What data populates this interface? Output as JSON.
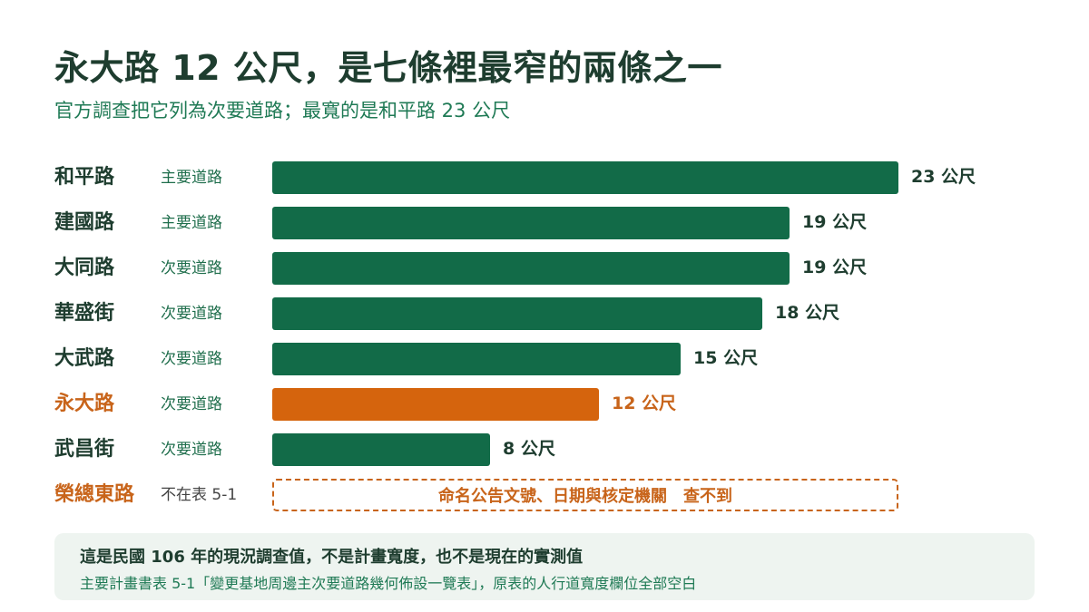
{
  "header": {
    "title": "永大路 12 公尺，是七條裡最窄的兩條之一",
    "subtitle": "官方調查把它列為次要道路；最寬的是和平路 23 公尺"
  },
  "colors": {
    "bar": "#126b48",
    "highlight": "#d5640d",
    "text_dark": "#1e3d2f",
    "text_green": "#1f7a55",
    "note_bg": "#eef4f0"
  },
  "chart_data": {
    "type": "bar",
    "orientation": "horizontal",
    "unit": "公尺",
    "xlim": [
      0,
      23
    ],
    "grid": false,
    "categories": [
      "和平路",
      "建國路",
      "大同路",
      "華盛街",
      "大武路",
      "永大路",
      "武昌街"
    ],
    "classes": [
      "主要道路",
      "主要道路",
      "次要道路",
      "次要道路",
      "次要道路",
      "次要道路",
      "次要道路"
    ],
    "values": [
      23,
      19,
      19,
      18,
      15,
      12,
      8
    ],
    "value_labels": [
      "23 公尺",
      "19 公尺",
      "19 公尺",
      "18 公尺",
      "15 公尺",
      "12 公尺",
      "8 公尺"
    ],
    "highlight_index": 5,
    "missing_row": {
      "name": "榮總東路",
      "class": "不在表 5-1",
      "note": "命名公告文號、日期與核定機關　查不到"
    }
  },
  "note": {
    "main": "這是民國 106 年的現況調查值，不是計畫寬度，也不是現在的實測值",
    "sub": "主要計畫書表 5-1「變更基地周邊主次要道路幾何佈設一覽表」，原表的人行道寬度欄位全部空白"
  }
}
